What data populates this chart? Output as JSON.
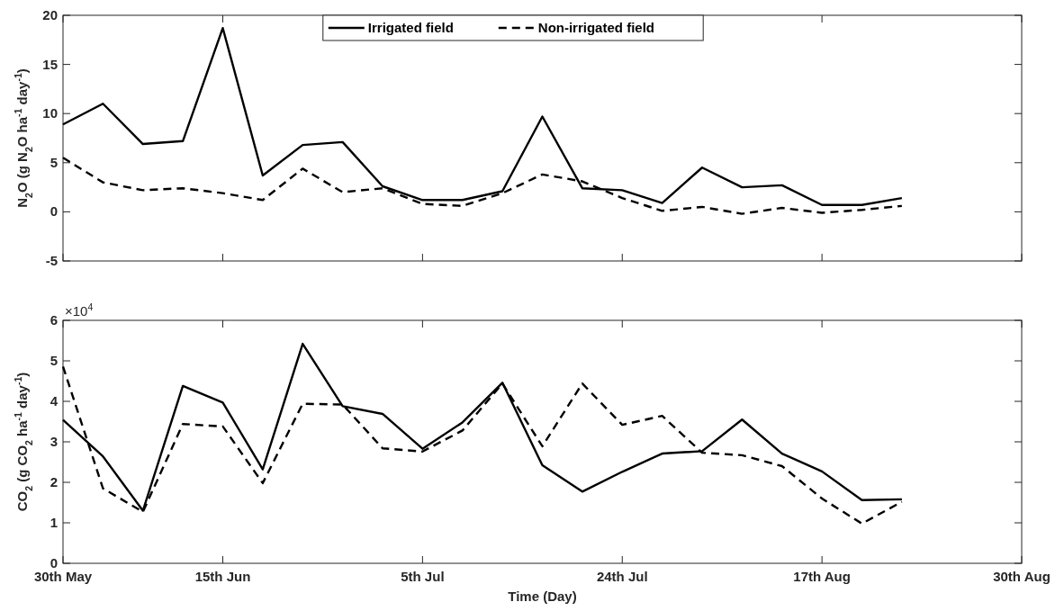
{
  "chart_data": [
    {
      "type": "line",
      "ylabel": "N$_{2}$O (g N$_{2}$O ha$^{-1}$ day$^{-1}$)",
      "categories": [
        null,
        null,
        null,
        null,
        null,
        null,
        null,
        null,
        null,
        null,
        null,
        null,
        null,
        null,
        null,
        null,
        null,
        null,
        null,
        null,
        null,
        null,
        null,
        null,
        null
      ],
      "ylim": [
        -5,
        20
      ],
      "yticks": [
        -5,
        0,
        5,
        10,
        15,
        20
      ],
      "tick_labels": "y",
      "legend": "top",
      "series": [
        {
          "name": "Irrigated field",
          "color": "#000000",
          "line_style": "solid",
          "values": [
            8.9,
            11.0,
            6.9,
            7.2,
            18.7,
            3.7,
            6.8,
            7.1,
            2.6,
            1.2,
            1.2,
            2.1,
            9.7,
            2.4,
            2.2,
            0.9,
            4.5,
            2.5,
            2.7,
            0.7,
            0.7,
            1.4,
            null,
            null,
            null
          ]
        },
        {
          "name": "Non-irrigated field",
          "color": "#000000",
          "line_style": "dashed",
          "values": [
            5.5,
            3.0,
            2.2,
            2.4,
            1.9,
            1.2,
            4.4,
            2.0,
            2.4,
            0.8,
            0.6,
            1.9,
            3.8,
            3.1,
            1.4,
            0.1,
            0.5,
            -0.2,
            0.4,
            -0.1,
            0.2,
            0.6,
            null,
            null,
            null
          ]
        }
      ]
    },
    {
      "type": "line",
      "xlabel": "Time (Day)",
      "ylabel": "CO$_{2}$ (g CO$_{2}$ ha$^{-1}$ day$^{-1}$)",
      "annotations": [
        "×10$^{4}$"
      ],
      "categories": [
        "30th May",
        null,
        null,
        null,
        "15th Jun",
        null,
        null,
        null,
        null,
        "5th Jul",
        null,
        null,
        null,
        null,
        "24th Jul",
        null,
        null,
        null,
        null,
        "17th Aug",
        null,
        null,
        null,
        null,
        "30th Aug"
      ],
      "ylim": [
        0,
        6
      ],
      "yticks": [
        0,
        1,
        2,
        3,
        4,
        5,
        6
      ],
      "series": [
        {
          "color": "#000000",
          "line_style": "solid",
          "values": [
            3.54,
            2.64,
            1.3,
            4.38,
            3.97,
            2.32,
            5.42,
            3.88,
            3.69,
            2.83,
            3.48,
            4.46,
            2.42,
            1.77,
            2.26,
            2.71,
            2.77,
            3.55,
            2.71,
            2.27,
            1.56,
            1.58,
            null,
            null,
            null
          ]
        },
        {
          "color": "#000000",
          "line_style": "dashed",
          "values": [
            4.86,
            1.85,
            1.27,
            3.44,
            3.38,
            1.98,
            3.94,
            3.92,
            2.84,
            2.76,
            3.28,
            4.44,
            2.89,
            4.44,
            3.42,
            3.64,
            2.73,
            2.67,
            2.4,
            1.6,
            0.98,
            1.52,
            null,
            null,
            null
          ]
        }
      ]
    }
  ]
}
